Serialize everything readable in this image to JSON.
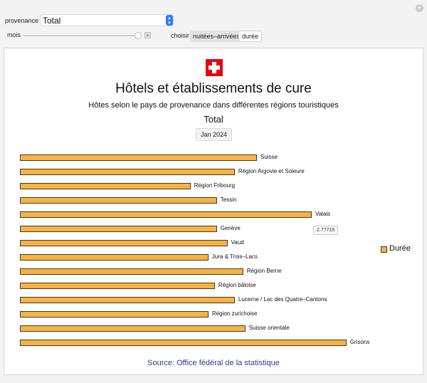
{
  "controls": {
    "provenance_label": "provenance",
    "provenance_value": "Total",
    "mois_label": "mois",
    "mois_position_fraction": 0.96,
    "choisir_label": "choisir",
    "choisir_options": [
      "nuitées–arrivées",
      "durée"
    ],
    "choisir_selected": "durée"
  },
  "chart": {
    "title": "Hôtels et établissements de cure",
    "subtitle": "Hôtes selon le pays de provenance dans différentes régions touristiques",
    "origin": "Total",
    "date": "Jan 2024",
    "tooltip": "2.77719",
    "legend": "Durée",
    "source": "Source: Office fédéral de la statistique",
    "bar_color": "#f8b33f"
  },
  "chart_data": {
    "type": "bar",
    "orientation": "horizontal",
    "series": [
      {
        "name": "Durée",
        "values": [
          2.25,
          2.04,
          1.62,
          1.87,
          2.77,
          1.87,
          1.97,
          1.79,
          2.12,
          1.85,
          2.04,
          1.79,
          2.14,
          3.1
        ]
      }
    ],
    "categories": [
      "Suisse",
      "Région Argovie et Soleure",
      "Région Fribourg",
      "Tessin",
      "Valais",
      "Genève",
      "Vaud",
      "Jura & Trois–Lacs",
      "Région Berne",
      "Région bâloise",
      "Lucerne / Lac des Quatre–Cantons",
      "Région zurichoise",
      "Suisse orientale",
      "Grisons"
    ],
    "xlim": [
      0,
      3.3
    ],
    "grid": false,
    "legend_position": "right"
  }
}
